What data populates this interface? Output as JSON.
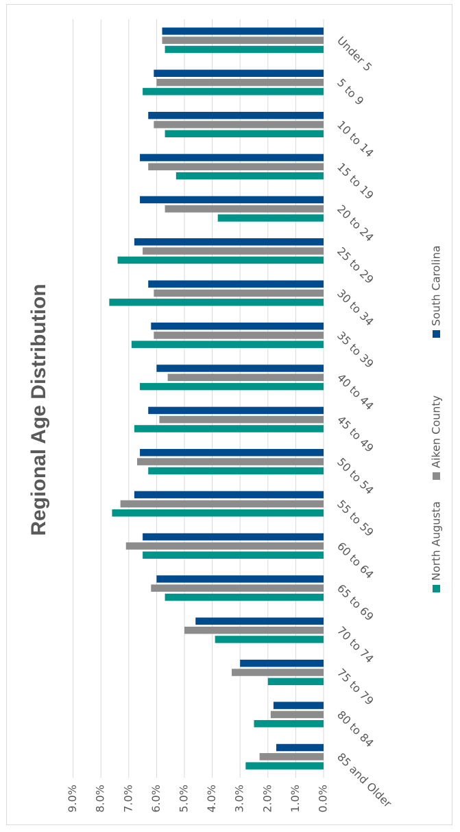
{
  "chart_data": {
    "type": "bar",
    "orientation": "horizontal",
    "rotated": "90deg-ccw",
    "title": "Regional Age Distribution",
    "xlabel": "",
    "ylabel": "",
    "value_axis": {
      "min": 0,
      "max": 9,
      "step": 1,
      "format": "percent_1dp",
      "ticks": [
        "0.0%",
        "1.0%",
        "2.0%",
        "3.0%",
        "4.0%",
        "5.0%",
        "6.0%",
        "7.0%",
        "8.0%",
        "9.0%"
      ]
    },
    "grid": true,
    "legend_position": "right",
    "categories": [
      "Under 5",
      "5 to 9",
      "10 to 14",
      "15 to 19",
      "20 to 24",
      "25 to 29",
      "30 to 34",
      "35 to 39",
      "40 to 44",
      "45 to 49",
      "50 to 54",
      "55 to 59",
      "60 to 64",
      "65 to 69",
      "70 to 74",
      "75 to 79",
      "80 to 84",
      "85 and Older"
    ],
    "series": [
      {
        "name": "North Augusta",
        "color": "#00938a",
        "values": [
          5.7,
          6.5,
          5.7,
          5.3,
          3.8,
          7.4,
          7.7,
          6.9,
          6.6,
          6.8,
          6.3,
          7.6,
          6.5,
          5.7,
          3.9,
          2.0,
          2.5,
          2.8
        ]
      },
      {
        "name": "Aiken County",
        "color": "#8c8c8c",
        "values": [
          5.8,
          6.0,
          6.1,
          6.3,
          5.7,
          6.5,
          6.1,
          6.1,
          5.6,
          5.9,
          6.7,
          7.3,
          7.1,
          6.2,
          5.0,
          3.3,
          1.9,
          2.3
        ]
      },
      {
        "name": "South Carolina",
        "color": "#004b8d",
        "values": [
          5.8,
          6.1,
          6.3,
          6.6,
          6.6,
          6.8,
          6.3,
          6.2,
          6.0,
          6.3,
          6.6,
          6.8,
          6.5,
          6.0,
          4.6,
          3.0,
          1.8,
          1.7
        ]
      }
    ]
  }
}
